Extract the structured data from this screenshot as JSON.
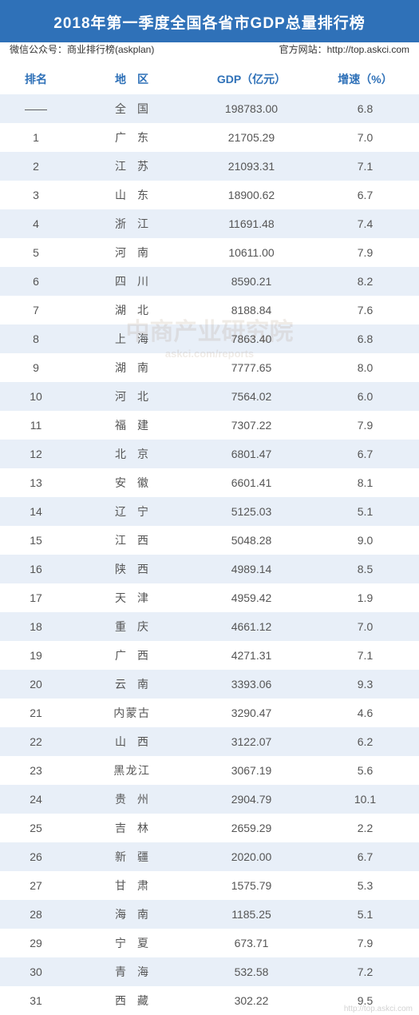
{
  "title": "2018年第一季度全国各省市GDP总量排行榜",
  "subtitle_left": "微信公众号：商业排行榜(askplan)",
  "subtitle_right": "官方网站：http://top.askci.com",
  "columns": {
    "rank": "排名",
    "region": "地　区",
    "gdp": "GDP（亿元）",
    "growth": "增速（%）"
  },
  "colors": {
    "title_bg": "#2f71b8",
    "title_text": "#ffffff",
    "sub_text": "#333333",
    "header_text": "#2f71b8",
    "row_text": "#555555",
    "row_even": "#ffffff",
    "row_odd": "#e8eff8",
    "watermark": "#7a4b1e",
    "footer": "#000000"
  },
  "watermark": {
    "main": "中商产业研究院",
    "sub": "askci.com/reports"
  },
  "footer_source": "http://top.askci.com",
  "rows": [
    {
      "rank": "——",
      "region": "全　国",
      "gdp": "198783.00",
      "growth": "6.8"
    },
    {
      "rank": "1",
      "region": "广　东",
      "gdp": "21705.29",
      "growth": "7.0"
    },
    {
      "rank": "2",
      "region": "江　苏",
      "gdp": "21093.31",
      "growth": "7.1"
    },
    {
      "rank": "3",
      "region": "山　东",
      "gdp": "18900.62",
      "growth": "6.7"
    },
    {
      "rank": "4",
      "region": "浙　江",
      "gdp": "11691.48",
      "growth": "7.4"
    },
    {
      "rank": "5",
      "region": "河　南",
      "gdp": "10611.00",
      "growth": "7.9"
    },
    {
      "rank": "6",
      "region": "四　川",
      "gdp": "8590.21",
      "growth": "8.2"
    },
    {
      "rank": "7",
      "region": "湖　北",
      "gdp": "8188.84",
      "growth": "7.6"
    },
    {
      "rank": "8",
      "region": "上　海",
      "gdp": "7863.40",
      "growth": "6.8"
    },
    {
      "rank": "9",
      "region": "湖　南",
      "gdp": "7777.65",
      "growth": "8.0"
    },
    {
      "rank": "10",
      "region": "河　北",
      "gdp": "7564.02",
      "growth": "6.0"
    },
    {
      "rank": "11",
      "region": "福　建",
      "gdp": "7307.22",
      "growth": "7.9"
    },
    {
      "rank": "12",
      "region": "北　京",
      "gdp": "6801.47",
      "growth": "6.7"
    },
    {
      "rank": "13",
      "region": "安　徽",
      "gdp": "6601.41",
      "growth": "8.1"
    },
    {
      "rank": "14",
      "region": "辽　宁",
      "gdp": "5125.03",
      "growth": "5.1"
    },
    {
      "rank": "15",
      "region": "江　西",
      "gdp": "5048.28",
      "growth": "9.0"
    },
    {
      "rank": "16",
      "region": "陕　西",
      "gdp": "4989.14",
      "growth": "8.5"
    },
    {
      "rank": "17",
      "region": "天　津",
      "gdp": "4959.42",
      "growth": "1.9"
    },
    {
      "rank": "18",
      "region": "重　庆",
      "gdp": "4661.12",
      "growth": "7.0"
    },
    {
      "rank": "19",
      "region": "广　西",
      "gdp": "4271.31",
      "growth": "7.1"
    },
    {
      "rank": "20",
      "region": "云　南",
      "gdp": "3393.06",
      "growth": "9.3"
    },
    {
      "rank": "21",
      "region": "内蒙古",
      "gdp": "3290.47",
      "growth": "4.6"
    },
    {
      "rank": "22",
      "region": "山　西",
      "gdp": "3122.07",
      "growth": "6.2"
    },
    {
      "rank": "23",
      "region": "黑龙江",
      "gdp": "3067.19",
      "growth": "5.6"
    },
    {
      "rank": "24",
      "region": "贵　州",
      "gdp": "2904.79",
      "growth": "10.1"
    },
    {
      "rank": "25",
      "region": "吉　林",
      "gdp": "2659.29",
      "growth": "2.2"
    },
    {
      "rank": "26",
      "region": "新　疆",
      "gdp": "2020.00",
      "growth": "6.7"
    },
    {
      "rank": "27",
      "region": "甘　肃",
      "gdp": "1575.79",
      "growth": "5.3"
    },
    {
      "rank": "28",
      "region": "海　南",
      "gdp": "1185.25",
      "growth": "5.1"
    },
    {
      "rank": "29",
      "region": "宁　夏",
      "gdp": "673.71",
      "growth": "7.9"
    },
    {
      "rank": "30",
      "region": "青　海",
      "gdp": "532.58",
      "growth": "7.2"
    },
    {
      "rank": "31",
      "region": "西　藏",
      "gdp": "302.22",
      "growth": "9.5"
    }
  ]
}
